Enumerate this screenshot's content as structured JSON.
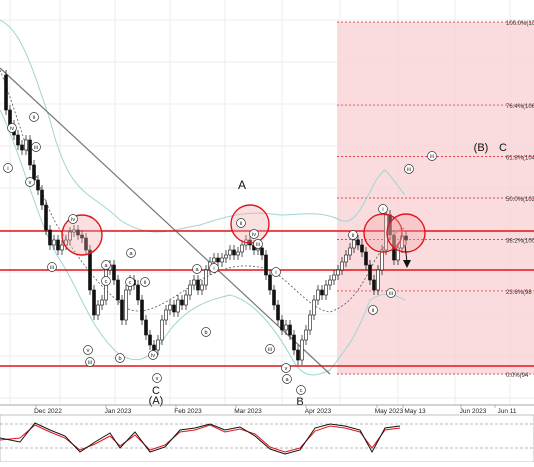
{
  "chart_data": {
    "type": "candlestick",
    "x_ticks": [
      "Dec 2022",
      "Jan 2023",
      "Feb 2023",
      "Mar 2023",
      "Apr 2023",
      "May 2023",
      "May 13",
      "Jun 2023",
      "Jun 11"
    ],
    "fibonacci_levels": [
      {
        "label": "100.0%(10",
        "level": 1.0
      },
      {
        "label": "76.4%(106",
        "level": 0.764
      },
      {
        "label": "61.8%(104",
        "level": 0.618
      },
      {
        "label": "50.0%(102",
        "level": 0.5
      },
      {
        "label": "38.2%(100",
        "level": 0.382
      },
      {
        "label": "23.6%(98",
        "level": 0.236
      },
      {
        "label": "0.0%(94",
        "level": 0.0
      }
    ],
    "wave_labels": [
      "i",
      "ii",
      "iii",
      "iv",
      "v",
      "a",
      "b",
      "c",
      "A",
      "B",
      "C",
      "(A)",
      "(B)"
    ],
    "major_labels": {
      "A": "A",
      "B": "B",
      "C_low": "C",
      "A_paren": "(A)",
      "B_paren": "(B)",
      "C_target": "C"
    },
    "circle_labels": {
      "i": "i",
      "ii": "ii",
      "iii": "iii",
      "iv": "iv",
      "v": "v",
      "a": "a",
      "b": "b",
      "c": "c"
    },
    "indicator": "Stochastic oscillator",
    "grid": true,
    "colors": {
      "candle": "#111111",
      "support_resistance": "#e0151b",
      "fib_zone": "#f9d3d6",
      "bollinger": "#9fd5d4",
      "trendline": "#777777",
      "stoch_main": "#111111",
      "stoch_signal": "#e0151b"
    }
  }
}
